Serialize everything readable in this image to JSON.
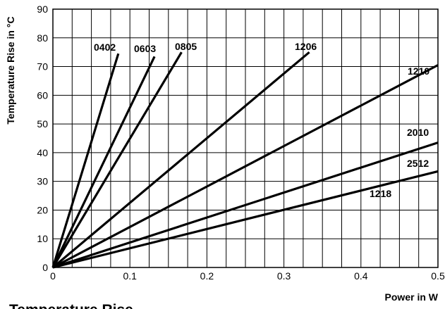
{
  "chart_data": {
    "type": "line",
    "title": "Temperature Rise",
    "xlabel": "Power in W",
    "ylabel": "Temperature Rise in °C",
    "xlim": [
      0,
      0.5
    ],
    "ylim": [
      0,
      90
    ],
    "x_ticks": [
      "0",
      "0.1",
      "0.2",
      "0.3",
      "0.4",
      "0.5"
    ],
    "y_ticks": [
      "0",
      "10",
      "20",
      "30",
      "40",
      "50",
      "60",
      "70",
      "80",
      "90"
    ],
    "grid": true,
    "series": [
      {
        "name": "0402",
        "x": [
          0,
          0.085
        ],
        "y": [
          0,
          74.5
        ]
      },
      {
        "name": "0603",
        "x": [
          0,
          0.132
        ],
        "y": [
          0,
          73.5
        ]
      },
      {
        "name": "0805",
        "x": [
          0,
          0.167
        ],
        "y": [
          0,
          75
        ]
      },
      {
        "name": "1206",
        "x": [
          0,
          0.333
        ],
        "y": [
          0,
          75
        ]
      },
      {
        "name": "1210",
        "x": [
          0,
          0.5
        ],
        "y": [
          0,
          70.5
        ]
      },
      {
        "name": "2010",
        "x": [
          0,
          0.5
        ],
        "y": [
          0,
          43.5
        ]
      },
      {
        "name": "2512",
        "x": [
          0,
          0.5
        ],
        "y": [
          0,
          33.5
        ]
      }
    ],
    "annotations": [
      "1218"
    ]
  }
}
